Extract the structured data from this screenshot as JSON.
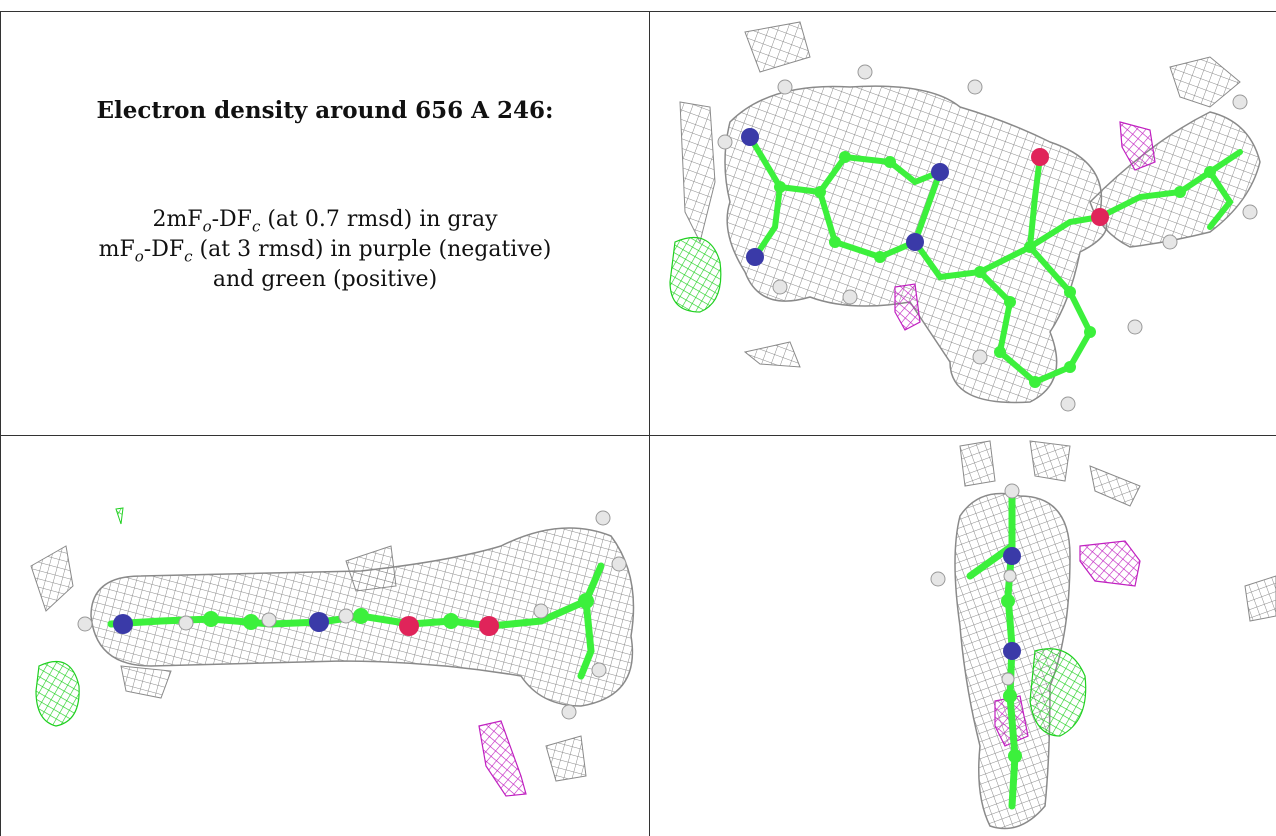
{
  "caption": {
    "title": "Electron density around 656 A 246:",
    "line1_prefix": "2mF",
    "line1_sub1": "o",
    "line1_mid": "-DF",
    "line1_sub2": "c",
    "line1_suffix": " (at 0.7 rmsd) in gray",
    "line2_prefix": "mF",
    "line2_sub1": "o",
    "line2_mid": "-DF",
    "line2_sub2": "c",
    "line2_suffix": " (at 3 rmsd) in purple (negative)",
    "line3": "and green (positive)"
  },
  "colors": {
    "mesh_gray": "#8a8a8a",
    "carbon_green": "#3cf03c",
    "nitrogen_blue": "#3a3aa8",
    "oxygen_red": "#e0245a",
    "hydrogen_white": "#e6e6e6",
    "density_purple": "#c020c0",
    "density_green": "#20d020"
  },
  "panels": [
    {
      "name": "top-right",
      "view": "face-on ligament view"
    },
    {
      "name": "bottom-left",
      "view": "edge-on horizontal view"
    },
    {
      "name": "bottom-right",
      "view": "edge-on vertical view"
    }
  ]
}
